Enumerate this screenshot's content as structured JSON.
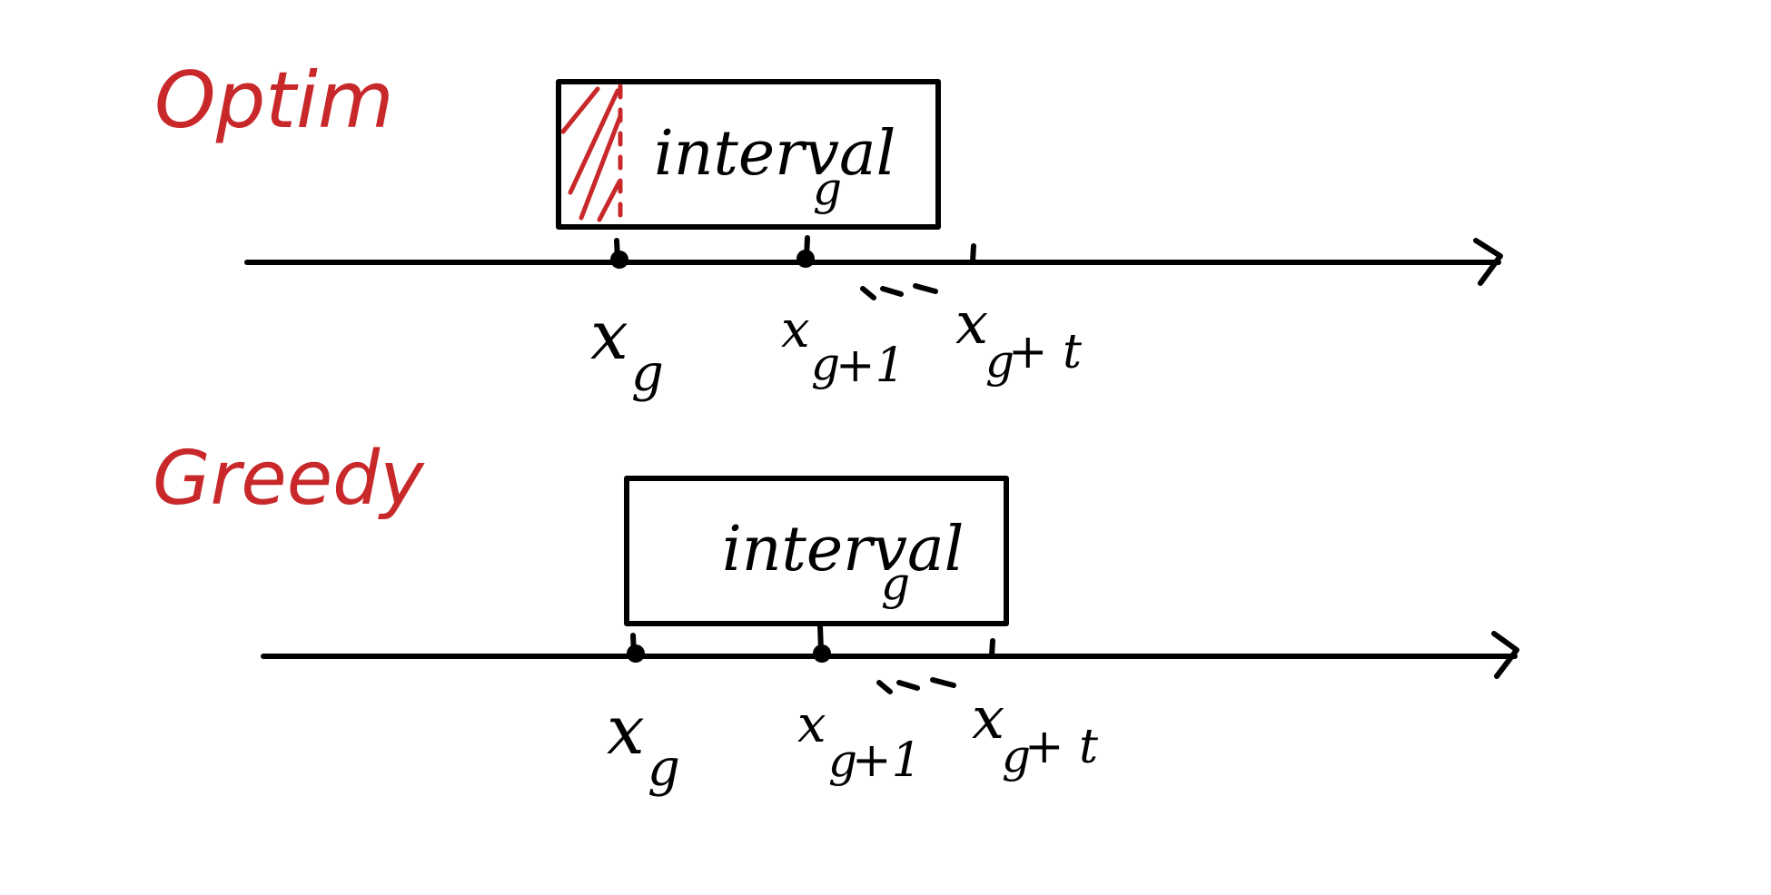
{
  "panels": [
    {
      "title": "Optim",
      "box_label": "interval",
      "box_label_sub": "g",
      "ticks": [
        {
          "main": "x",
          "sub": "g",
          "suffix": ""
        },
        {
          "main": "x",
          "sub": "g",
          "suffix": "+1"
        },
        {
          "main": "x",
          "sub": "g",
          "suffix": "+ t"
        }
      ],
      "ellipsis": "---",
      "hatched": true
    },
    {
      "title": "Greedy",
      "box_label": "interval",
      "box_label_sub": "g",
      "ticks": [
        {
          "main": "x",
          "sub": "g",
          "suffix": ""
        },
        {
          "main": "x",
          "sub": "g",
          "suffix": "+1"
        },
        {
          "main": "x",
          "sub": "g",
          "suffix": "+ t"
        }
      ],
      "ellipsis": "---",
      "hatched": false
    }
  ],
  "colors": {
    "ink": "#000000",
    "accent": "#c8282a",
    "background": "#ffffff"
  }
}
